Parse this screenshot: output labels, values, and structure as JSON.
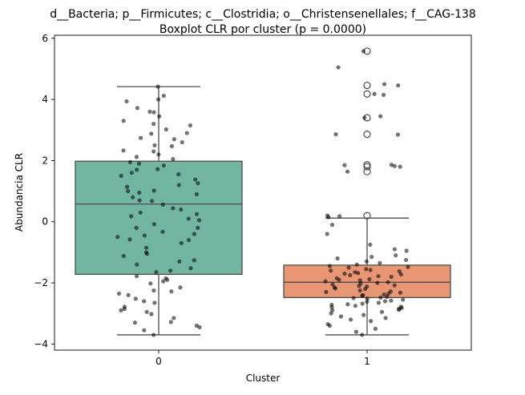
{
  "chart_data": {
    "type": "boxplot",
    "title": "d__Bacteria; p__Firmicutes; c__Clostridia; o__Christensenellales; f__CAG-138",
    "subtitle": "Boxplot CLR por cluster (p = 0.0000)",
    "xlabel": "Cluster",
    "ylabel": "Abundancia CLR",
    "categories": [
      "0",
      "1"
    ],
    "ylim": [
      -4.2,
      6.1
    ],
    "yticks": [
      "−4",
      "−2",
      "0",
      "2",
      "4",
      "6"
    ],
    "ytick_values": [
      -4,
      -2,
      0,
      2,
      4,
      6
    ],
    "grid": false,
    "boxes": [
      {
        "name": "0",
        "color": "#72b6a1",
        "whisker_low": -3.7,
        "q1": -1.72,
        "median": 0.58,
        "q3": 1.98,
        "whisker_high": 4.42,
        "outliers": []
      },
      {
        "name": "1",
        "color": "#e99675",
        "whisker_low": -3.7,
        "q1": -2.48,
        "median": -1.98,
        "q3": -1.42,
        "whisker_high": 0.12,
        "outliers": [
          5.58,
          4.46,
          4.18,
          3.4,
          2.86,
          1.86,
          1.8,
          1.64,
          0.2
        ]
      }
    ],
    "points": [
      {
        "cluster": 0,
        "values": [
          4.42,
          4.12,
          3.94,
          3.72,
          3.58,
          3.45,
          3.3,
          3.15,
          3.02,
          2.88,
          2.74,
          2.6,
          2.47,
          2.33,
          2.2,
          2.12,
          2.05,
          1.95,
          1.84,
          1.72,
          1.6,
          1.5,
          1.38,
          1.26,
          1.14,
          1.02,
          0.9,
          0.8,
          0.68,
          0.56,
          0.44,
          0.3,
          0.18,
          0.05,
          -0.08,
          -0.2,
          -0.33,
          -0.45,
          -0.58,
          -0.7,
          -0.85,
          -1.0,
          -1.12,
          -1.26,
          -1.4,
          -1.52,
          -1.65,
          -1.78,
          -1.9,
          -2.02,
          -2.15,
          -2.28,
          -2.4,
          -2.52,
          -2.65,
          -2.78,
          -2.9,
          -3.02,
          -3.15,
          -3.28,
          -3.4,
          -3.55,
          -3.7,
          4.0,
          3.2,
          2.9,
          2.5,
          2.3,
          1.9,
          1.7,
          1.2,
          1.0,
          0.7,
          0.4,
          0.1,
          -0.2,
          -0.4,
          -0.6,
          -1.3,
          -1.6,
          -1.95,
          -2.35,
          -2.6,
          -2.95,
          -3.3,
          3.6,
          2.7,
          1.55,
          0.95,
          0.25,
          -0.5,
          -1.05,
          -1.85,
          -2.25,
          -2.85,
          -3.45
        ]
      },
      {
        "cluster": 1,
        "values": [
          5.58,
          4.46,
          4.18,
          3.4,
          2.86,
          1.86,
          1.8,
          1.64,
          0.2,
          5.05,
          4.5,
          4.15,
          3.45,
          2.85,
          1.85,
          1.82,
          0.18,
          0.15,
          -0.1,
          -0.4,
          -0.75,
          -0.9,
          -1.1,
          -1.2,
          -1.3,
          -1.45,
          -1.5,
          -1.55,
          -1.6,
          -1.65,
          -1.7,
          -1.75,
          -1.8,
          -1.85,
          -1.9,
          -1.95,
          -2.0,
          -2.05,
          -2.1,
          -2.15,
          -2.2,
          -2.25,
          -2.3,
          -2.35,
          -2.4,
          -2.45,
          -2.5,
          -2.55,
          -2.6,
          -2.65,
          -2.7,
          -2.75,
          -2.8,
          -2.85,
          -2.9,
          -3.0,
          -3.1,
          -3.2,
          -3.35,
          -3.5,
          -3.7,
          -1.4,
          -1.58,
          -1.72,
          -1.88,
          -2.02,
          -2.18,
          -2.32,
          -2.48,
          -2.62,
          -2.78,
          -2.95,
          -3.05,
          -1.25,
          -1.62,
          -1.92,
          -2.12,
          -2.38,
          -2.58,
          -2.82,
          -3.25,
          -1.48,
          -1.78,
          -2.08,
          -2.42,
          -2.72,
          -0.95,
          -1.15,
          -1.35,
          -1.68,
          -1.98,
          -2.28,
          -2.52,
          -2.68,
          -2.88,
          -3.15,
          -3.4,
          -3.6
        ]
      }
    ]
  }
}
